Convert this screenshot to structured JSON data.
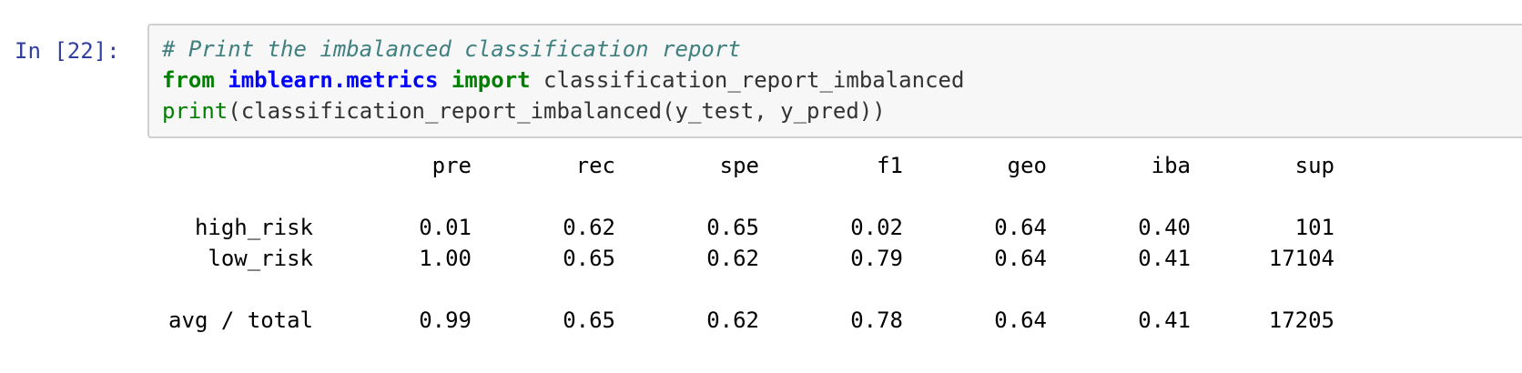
{
  "cell": {
    "prompt": "In [22]:",
    "code": {
      "line1": {
        "comment": "# Print the imbalanced classification report"
      },
      "line2": {
        "kw_from": "from",
        "module": "imblearn.metrics",
        "kw_import": "import",
        "name": "classification_report_imbalanced"
      },
      "line3": {
        "builtin": "print",
        "rest": "(classification_report_imbalanced(y_test, y_pred))"
      }
    }
  },
  "report": {
    "headers": [
      "pre",
      "rec",
      "spe",
      "f1",
      "geo",
      "iba",
      "sup"
    ],
    "rows": [
      {
        "label": "high_risk",
        "values": [
          "0.01",
          "0.62",
          "0.65",
          "0.02",
          "0.64",
          "0.40",
          "101"
        ]
      },
      {
        "label": "low_risk",
        "values": [
          "1.00",
          "0.65",
          "0.62",
          "0.79",
          "0.64",
          "0.41",
          "17104"
        ]
      }
    ],
    "total": {
      "label": "avg / total",
      "values": [
        "0.99",
        "0.65",
        "0.62",
        "0.78",
        "0.64",
        "0.41",
        "17205"
      ]
    }
  },
  "colors": {
    "prompt": "#303f9f",
    "comment": "#408080",
    "keyword": "#008000",
    "namespace": "#0000ff",
    "input_bg": "#f7f7f7",
    "input_border": "#cfcfcf"
  }
}
